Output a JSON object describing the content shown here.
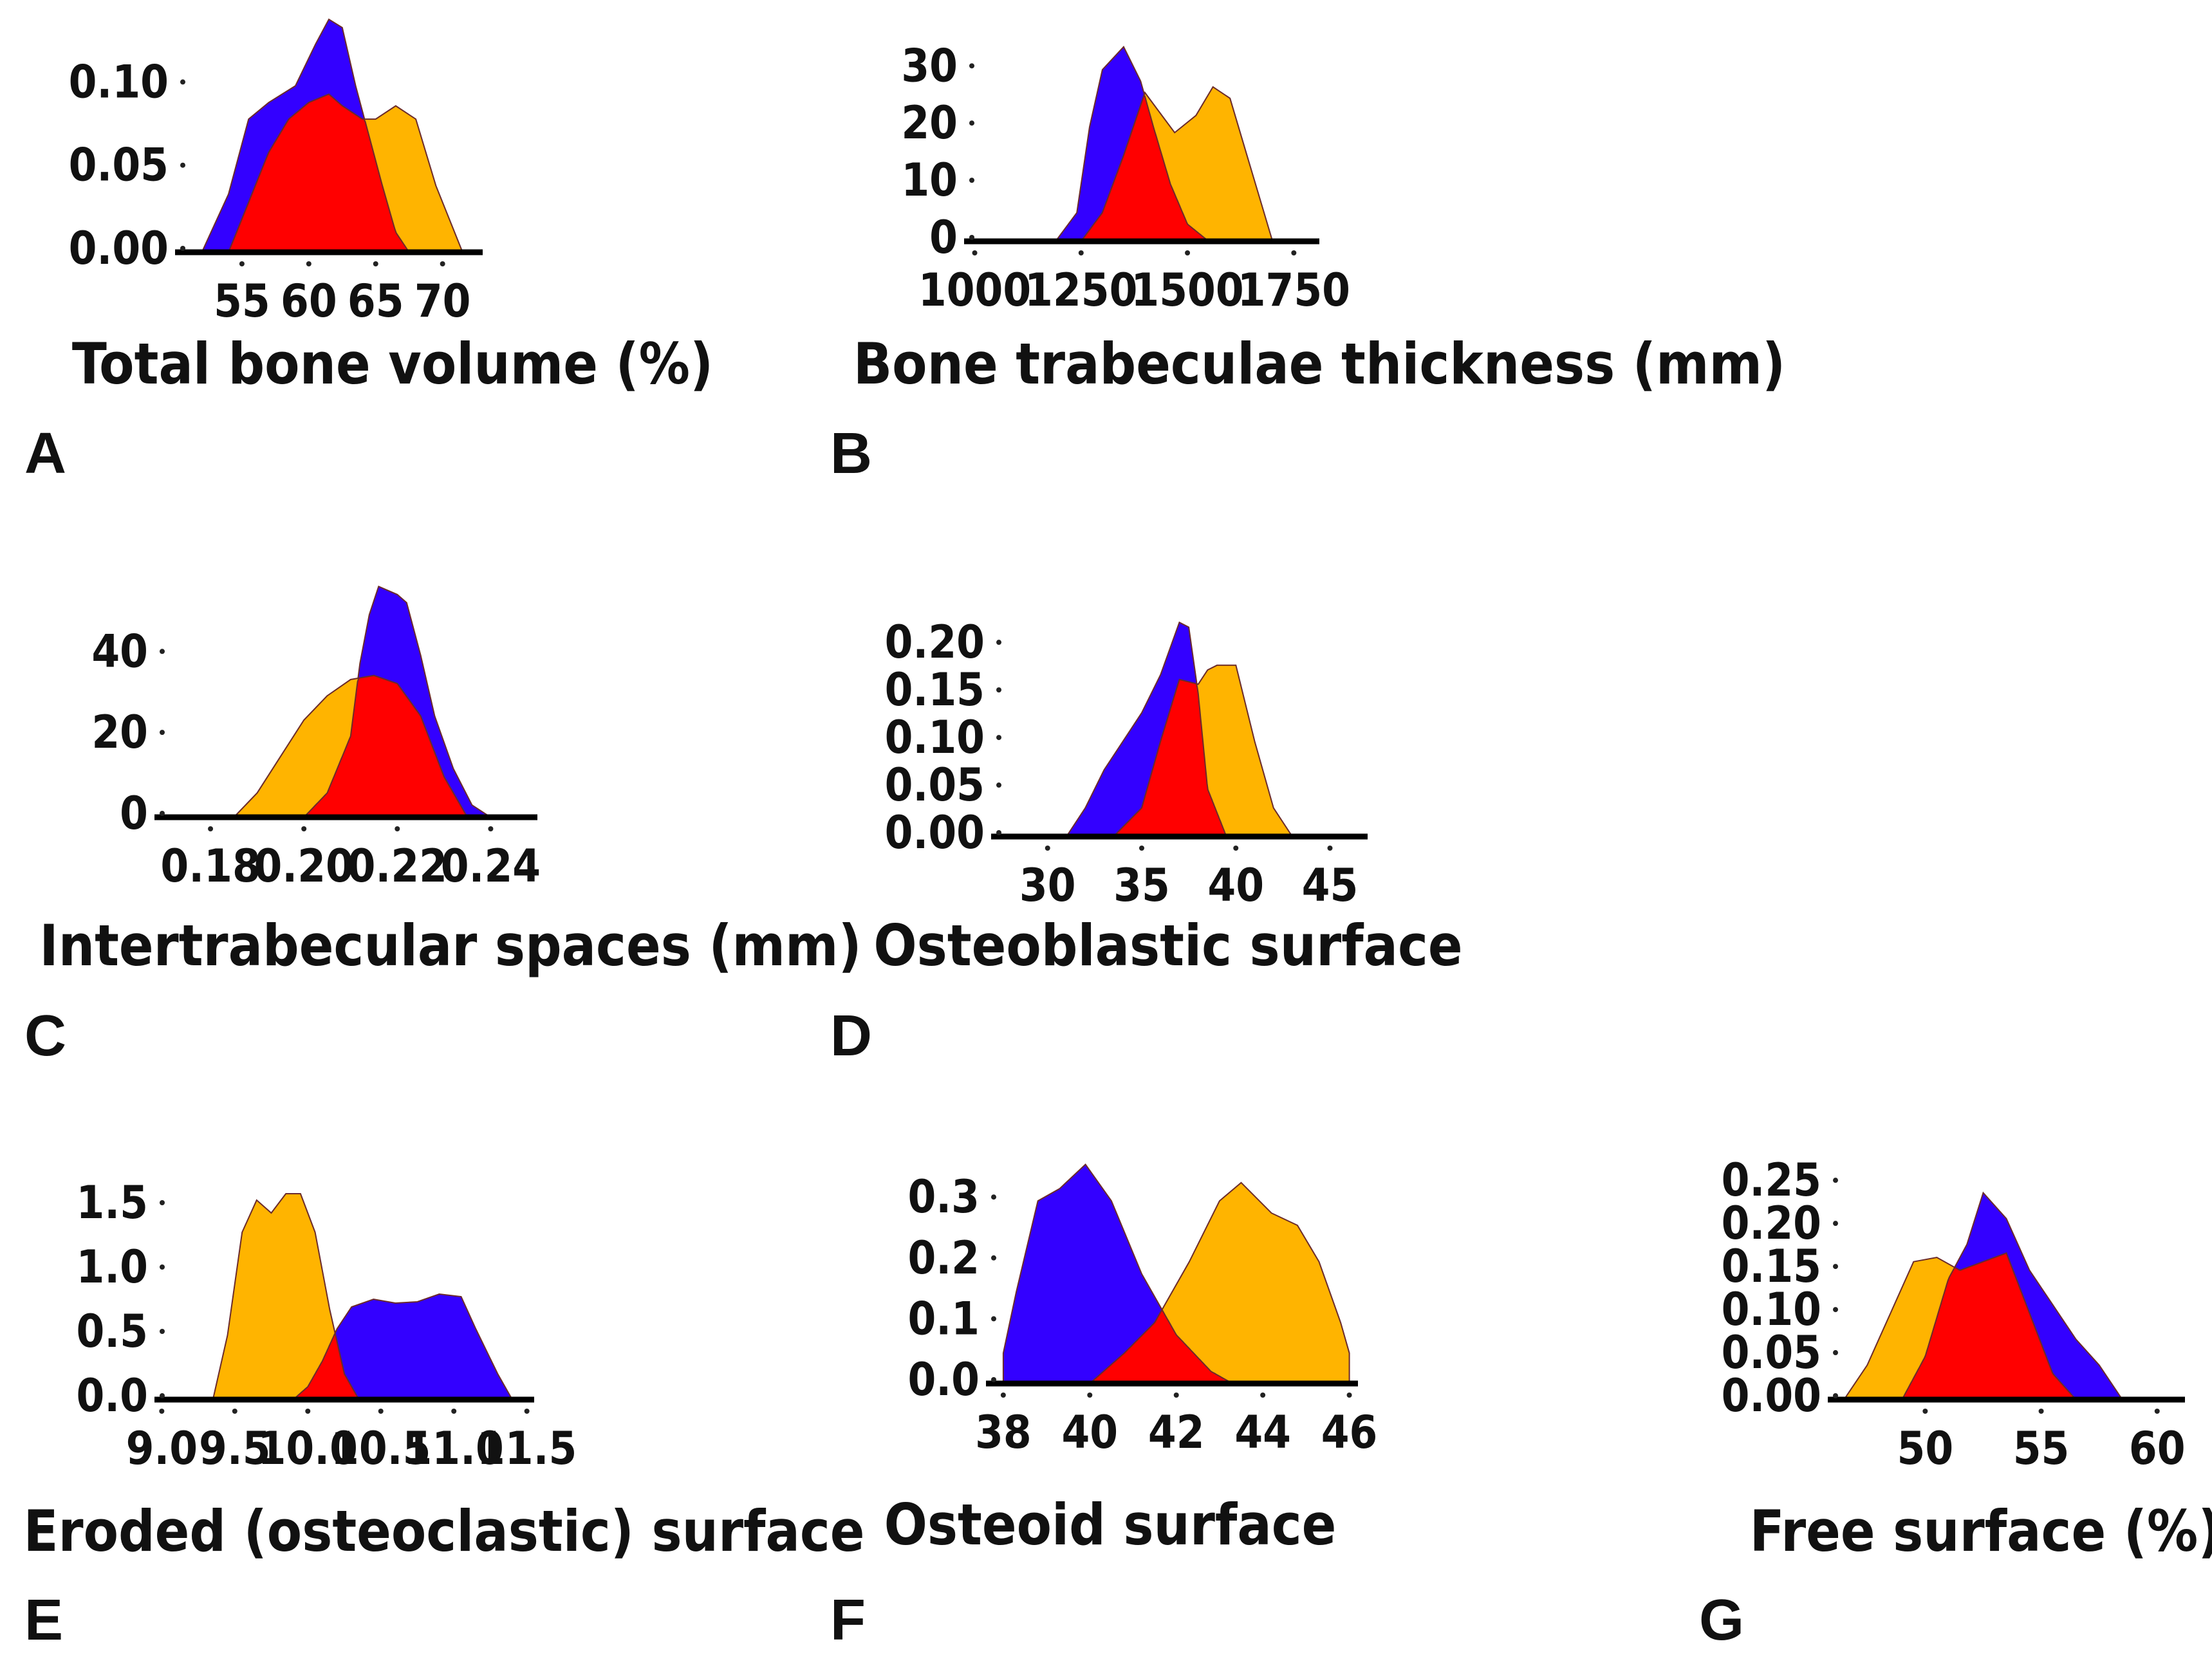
{
  "figure": {
    "series_colors": {
      "group_blue": "#3300ff",
      "group_orange": "#ffb400",
      "overlap": "#ff0000",
      "outline": "#6b2b2b",
      "axis": "#000000"
    }
  },
  "chart_data": [
    {
      "panel": "A",
      "type": "area",
      "title": "Total bone volume (%)",
      "xlabel": "Total bone volume (%)",
      "ylabel": "",
      "xlim": [
        50,
        73
      ],
      "ylim": [
        0,
        0.14
      ],
      "x_ticks": [
        55,
        60,
        65,
        70
      ],
      "x_tick_labels": [
        "55",
        "60",
        "65",
        "70"
      ],
      "y_ticks": [
        0,
        0.05,
        0.1
      ],
      "y_tick_labels": [
        "0.00",
        "0.05",
        "0.10"
      ],
      "series": [
        {
          "name": "blue",
          "x": [
            52,
            54,
            55.5,
            57,
            59,
            60.5,
            61.5,
            62.5,
            63.5,
            64.5,
            65.5,
            66.5,
            67.5
          ],
          "y": [
            0,
            0.035,
            0.08,
            0.09,
            0.1,
            0.125,
            0.14,
            0.135,
            0.1,
            0.07,
            0.04,
            0.012,
            0
          ]
        },
        {
          "name": "orange",
          "x": [
            54,
            55.5,
            57,
            58.5,
            60,
            61.5,
            62.5,
            64,
            65,
            66.5,
            68,
            69.5,
            71.5
          ],
          "y": [
            0,
            0.03,
            0.06,
            0.08,
            0.09,
            0.095,
            0.088,
            0.08,
            0.08,
            0.088,
            0.08,
            0.04,
            0
          ]
        }
      ]
    },
    {
      "panel": "B",
      "type": "area",
      "title": "Bone trabeculae thickness (mm)",
      "xlabel": "Bone trabeculae thickness (mm)",
      "ylabel": "",
      "xlim": [
        975,
        1810
      ],
      "ylim": [
        0,
        36
      ],
      "x_ticks": [
        1000,
        1250,
        1500,
        1750
      ],
      "x_tick_labels": [
        "1000",
        "1250",
        "1500",
        "1750"
      ],
      "y_ticks": [
        0,
        10,
        20,
        30
      ],
      "y_tick_labels": [
        "0",
        "10",
        "20",
        "30"
      ],
      "series": [
        {
          "name": "blue",
          "x": [
            1190,
            1240,
            1270,
            1300,
            1350,
            1390,
            1420,
            1460,
            1500,
            1550
          ],
          "y": [
            0,
            5,
            20,
            30,
            34,
            28,
            20,
            10,
            3,
            0
          ]
        },
        {
          "name": "orange",
          "x": [
            1250,
            1300,
            1350,
            1400,
            1430,
            1470,
            1520,
            1560,
            1600,
            1640,
            1680,
            1700
          ],
          "y": [
            0,
            5,
            15,
            26,
            23,
            19,
            22,
            27,
            25,
            15,
            5,
            0
          ]
        }
      ]
    },
    {
      "panel": "C",
      "type": "area",
      "title": "Intertrabecular spaces (mm)",
      "xlabel": "Intertrabecular spaces (mm)",
      "ylabel": "",
      "xlim": [
        0.168,
        0.25
      ],
      "ylim": [
        0,
        58
      ],
      "x_ticks": [
        0.18,
        0.2,
        0.22,
        0.24
      ],
      "x_tick_labels": [
        "0.18",
        "0.20",
        "0.22",
        "0.24"
      ],
      "y_ticks": [
        0,
        20,
        40
      ],
      "y_tick_labels": [
        "0",
        "20",
        "40"
      ],
      "series": [
        {
          "name": "blue",
          "x": [
            0.2,
            0.205,
            0.21,
            0.212,
            0.214,
            0.216,
            0.22,
            0.222,
            0.225,
            0.228,
            0.232,
            0.236,
            0.24
          ],
          "y": [
            0,
            6,
            20,
            38,
            50,
            57,
            55,
            53,
            40,
            25,
            12,
            3,
            0
          ]
        },
        {
          "name": "orange",
          "x": [
            0.185,
            0.19,
            0.195,
            0.2,
            0.205,
            0.21,
            0.215,
            0.22,
            0.225,
            0.23,
            0.235
          ],
          "y": [
            0,
            6,
            15,
            24,
            30,
            34,
            35,
            33,
            25,
            10,
            0
          ]
        }
      ]
    },
    {
      "panel": "D",
      "type": "area",
      "title": "Osteoblastic surface",
      "xlabel": "Osteoblastic surface",
      "ylabel": "",
      "xlim": [
        27,
        47
      ],
      "ylim": [
        0,
        0.24
      ],
      "x_ticks": [
        30,
        35,
        40,
        45
      ],
      "x_tick_labels": [
        "30",
        "35",
        "40",
        "45"
      ],
      "y_ticks": [
        0,
        0.05,
        0.1,
        0.15,
        0.2
      ],
      "y_tick_labels": [
        "0.00",
        "0.05",
        "0.10",
        "0.15",
        "0.20"
      ],
      "series": [
        {
          "name": "blue",
          "x": [
            31,
            32,
            33,
            34,
            35,
            36,
            37,
            37.5,
            38,
            38.5,
            39.5
          ],
          "y": [
            0,
            0.03,
            0.07,
            0.1,
            0.13,
            0.17,
            0.225,
            0.22,
            0.15,
            0.05,
            0
          ]
        },
        {
          "name": "orange",
          "x": [
            33.5,
            35,
            36,
            37,
            38,
            38.5,
            39,
            40,
            41,
            42,
            43
          ],
          "y": [
            0,
            0.03,
            0.1,
            0.165,
            0.16,
            0.175,
            0.18,
            0.18,
            0.1,
            0.03,
            0
          ]
        }
      ]
    },
    {
      "panel": "E",
      "type": "area",
      "title": "Eroded (osteoclastic) surface",
      "xlabel": "Eroded (osteoclastic) surface",
      "ylabel": "",
      "xlim": [
        8.95,
        11.55
      ],
      "ylim": [
        0,
        1.85
      ],
      "x_ticks": [
        9.0,
        9.5,
        10.0,
        10.5,
        11.0,
        11.5
      ],
      "x_tick_labels": [
        "9.0",
        "9.5",
        "10.0",
        "10.5",
        "11.0",
        "11.5"
      ],
      "y_ticks": [
        0,
        0.5,
        1.0,
        1.5
      ],
      "y_tick_labels": [
        "0.0",
        "0.5",
        "1.0",
        "1.5"
      ],
      "series": [
        {
          "name": "blue",
          "x": [
            9.9,
            10.0,
            10.1,
            10.2,
            10.3,
            10.45,
            10.6,
            10.75,
            10.9,
            11.05,
            11.15,
            11.3,
            11.4
          ],
          "y": [
            0,
            0.1,
            0.3,
            0.55,
            0.72,
            0.78,
            0.75,
            0.76,
            0.82,
            0.8,
            0.55,
            0.2,
            0
          ]
        },
        {
          "name": "orange",
          "x": [
            9.35,
            9.45,
            9.55,
            9.65,
            9.75,
            9.85,
            9.95,
            10.05,
            10.15,
            10.25,
            10.35
          ],
          "y": [
            0,
            0.5,
            1.3,
            1.55,
            1.45,
            1.6,
            1.6,
            1.3,
            0.7,
            0.2,
            0
          ]
        }
      ]
    },
    {
      "panel": "F",
      "type": "area",
      "title": "Osteoid surface",
      "xlabel": "Osteoid surface",
      "ylabel": "",
      "xlim": [
        37.6,
        46.2
      ],
      "ylim": [
        0,
        0.37
      ],
      "x_ticks": [
        38,
        40,
        42,
        44,
        46
      ],
      "x_tick_labels": [
        "38",
        "40",
        "42",
        "44",
        "46"
      ],
      "y_ticks": [
        0,
        0.1,
        0.2,
        0.3
      ],
      "y_tick_labels": [
        "0.0",
        "0.1",
        "0.2",
        "0.3"
      ],
      "series": [
        {
          "name": "blue",
          "x": [
            38,
            38.3,
            38.8,
            39.3,
            39.9,
            40.5,
            41.2,
            42,
            42.8,
            43.3
          ],
          "y": [
            0.05,
            0.15,
            0.3,
            0.32,
            0.36,
            0.3,
            0.18,
            0.08,
            0.02,
            0
          ]
        },
        {
          "name": "orange",
          "x": [
            40,
            40.8,
            41.5,
            42.3,
            43,
            43.5,
            44.2,
            44.8,
            45.3,
            45.8,
            46
          ],
          "y": [
            0,
            0.05,
            0.1,
            0.2,
            0.3,
            0.33,
            0.28,
            0.26,
            0.2,
            0.1,
            0.05
          ]
        }
      ]
    },
    {
      "panel": "G",
      "type": "area",
      "title": "Free surface (%)",
      "xlabel": "Free surface (%)",
      "ylabel": "",
      "xlim": [
        45.8,
        61.2
      ],
      "ylim": [
        0,
        0.28
      ],
      "x_ticks": [
        50,
        55,
        60
      ],
      "x_tick_labels": [
        "50",
        "55",
        "60"
      ],
      "y_ticks": [
        0,
        0.05,
        0.1,
        0.15,
        0.2,
        0.25
      ],
      "y_tick_labels": [
        "0.00",
        "0.05",
        "0.10",
        "0.15",
        "0.20",
        "0.25"
      ],
      "series": [
        {
          "name": "blue",
          "x": [
            49,
            50,
            51,
            51.8,
            52.5,
            53.5,
            54.5,
            55.5,
            56.5,
            57.5,
            58.5
          ],
          "y": [
            0,
            0.05,
            0.14,
            0.18,
            0.24,
            0.21,
            0.15,
            0.11,
            0.07,
            0.04,
            0
          ]
        },
        {
          "name": "orange",
          "x": [
            46.5,
            47.5,
            48.5,
            49.5,
            50.5,
            51.5,
            52.5,
            53.5,
            54.5,
            55.5,
            56.5
          ],
          "y": [
            0,
            0.04,
            0.1,
            0.16,
            0.165,
            0.15,
            0.16,
            0.17,
            0.1,
            0.03,
            0
          ]
        }
      ]
    }
  ]
}
